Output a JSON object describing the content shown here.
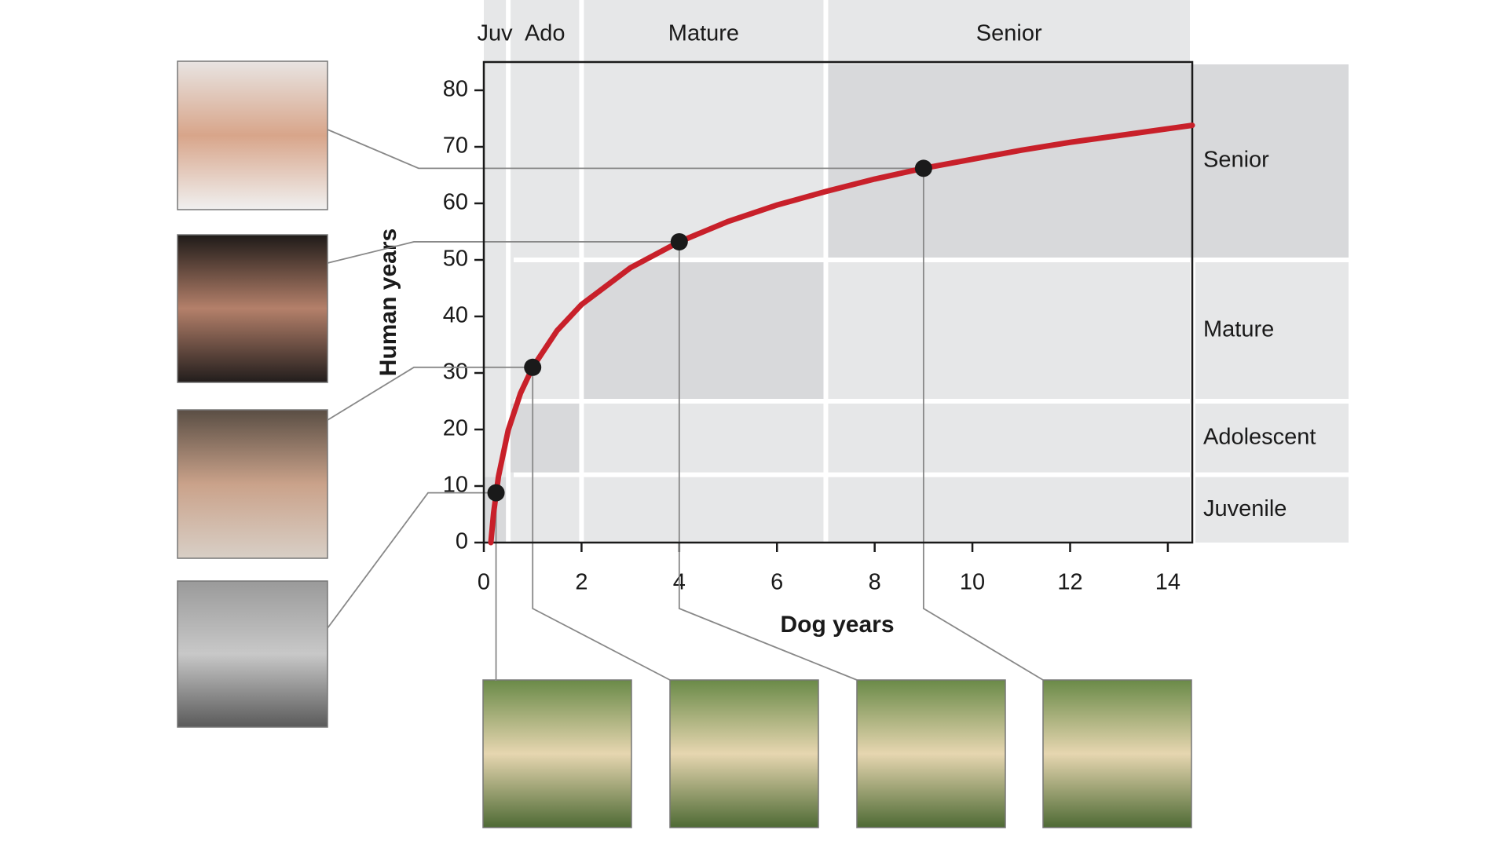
{
  "chart_data": {
    "type": "line",
    "x_label": "Dog years",
    "y_label": "Human years",
    "xlim": [
      0,
      14.5
    ],
    "ylim": [
      0,
      85
    ],
    "xticks": [
      0,
      2,
      4,
      6,
      8,
      10,
      12,
      14
    ],
    "yticks": [
      0,
      10,
      20,
      30,
      40,
      50,
      60,
      70,
      80
    ],
    "dog_stages": [
      {
        "label": "Juv",
        "range": [
          0,
          0.5
        ]
      },
      {
        "label": "Ado",
        "range": [
          0.5,
          2
        ]
      },
      {
        "label": "Mature",
        "range": [
          2,
          7
        ]
      },
      {
        "label": "Senior",
        "range": [
          7,
          14.5
        ]
      }
    ],
    "human_stages": [
      {
        "label": "Juvenile",
        "range": [
          0,
          12
        ]
      },
      {
        "label": "Adolescent",
        "range": [
          12,
          25
        ]
      },
      {
        "label": "Mature",
        "range": [
          25,
          50
        ]
      },
      {
        "label": "Senior",
        "range": [
          50,
          85
        ]
      }
    ],
    "series": [
      {
        "color": "#c8202a",
        "x": [
          0.144,
          0.2,
          0.3,
          0.5,
          0.75,
          1,
          1.5,
          2,
          3,
          4,
          5,
          6,
          7,
          8,
          9,
          10,
          11,
          12,
          13,
          14,
          14.5
        ],
        "values": [
          0,
          5.2,
          11.7,
          19.9,
          26.4,
          31,
          37.5,
          42.1,
          48.6,
          53.2,
          56.8,
          59.7,
          62.1,
          64.3,
          66.2,
          67.8,
          69.4,
          70.8,
          72.0,
          73.2,
          73.8
        ]
      },
      {
        "type": "scatter",
        "color": "#1a1a1a",
        "x": [
          0.25,
          1,
          4,
          9
        ],
        "values": [
          8.8,
          31,
          53.2,
          66.2
        ]
      }
    ]
  }
}
